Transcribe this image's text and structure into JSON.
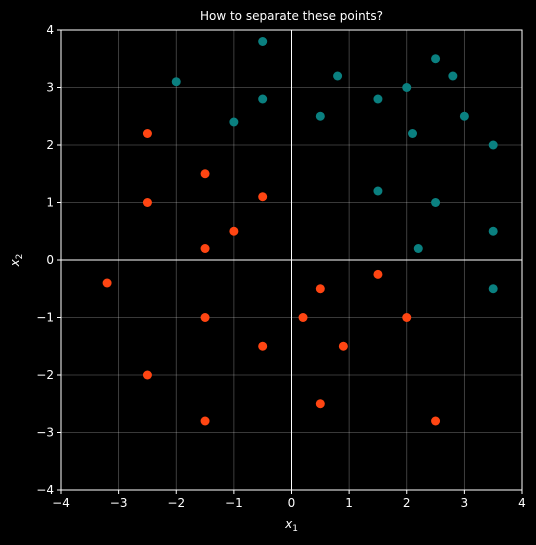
{
  "chart_data": {
    "type": "scatter",
    "title": "How to separate these points?",
    "xlabel": "x",
    "xlabel_sub": "1",
    "ylabel": "x",
    "ylabel_sub": "2",
    "xlim": [
      -4,
      4
    ],
    "ylim": [
      -4,
      4
    ],
    "xticks": [
      -4,
      -3,
      -2,
      -1,
      0,
      1,
      2,
      3,
      4
    ],
    "yticks": [
      -4,
      -3,
      -2,
      -1,
      0,
      1,
      2,
      3,
      4
    ],
    "grid": true,
    "background": "#000000",
    "series": [
      {
        "color": "#0a8080",
        "points": [
          [
            -0.5,
            3.8
          ],
          [
            -2.0,
            3.1
          ],
          [
            -0.5,
            2.8
          ],
          [
            -1.0,
            2.4
          ],
          [
            0.5,
            2.5
          ],
          [
            0.8,
            3.2
          ],
          [
            1.5,
            2.8
          ],
          [
            2.0,
            3.0
          ],
          [
            2.1,
            2.2
          ],
          [
            2.5,
            3.5
          ],
          [
            2.8,
            3.2
          ],
          [
            3.0,
            2.5
          ],
          [
            3.5,
            2.0
          ],
          [
            1.5,
            1.2
          ],
          [
            2.5,
            1.0
          ],
          [
            3.5,
            0.5
          ],
          [
            2.2,
            0.2
          ],
          [
            3.5,
            -0.5
          ]
        ]
      },
      {
        "color": "#ff4512",
        "points": [
          [
            -2.5,
            2.2
          ],
          [
            -1.5,
            1.5
          ],
          [
            -2.5,
            1.0
          ],
          [
            -0.5,
            1.1
          ],
          [
            -1.0,
            0.5
          ],
          [
            -1.5,
            0.2
          ],
          [
            -3.2,
            -0.4
          ],
          [
            -1.5,
            -1.0
          ],
          [
            -0.5,
            -1.5
          ],
          [
            -2.5,
            -2.0
          ],
          [
            -1.5,
            -2.8
          ],
          [
            0.5,
            -0.5
          ],
          [
            0.2,
            -1.0
          ],
          [
            0.9,
            -1.5
          ],
          [
            1.5,
            -0.25
          ],
          [
            2.0,
            -1.0
          ],
          [
            0.5,
            -2.5
          ],
          [
            2.5,
            -2.8
          ]
        ]
      }
    ]
  }
}
